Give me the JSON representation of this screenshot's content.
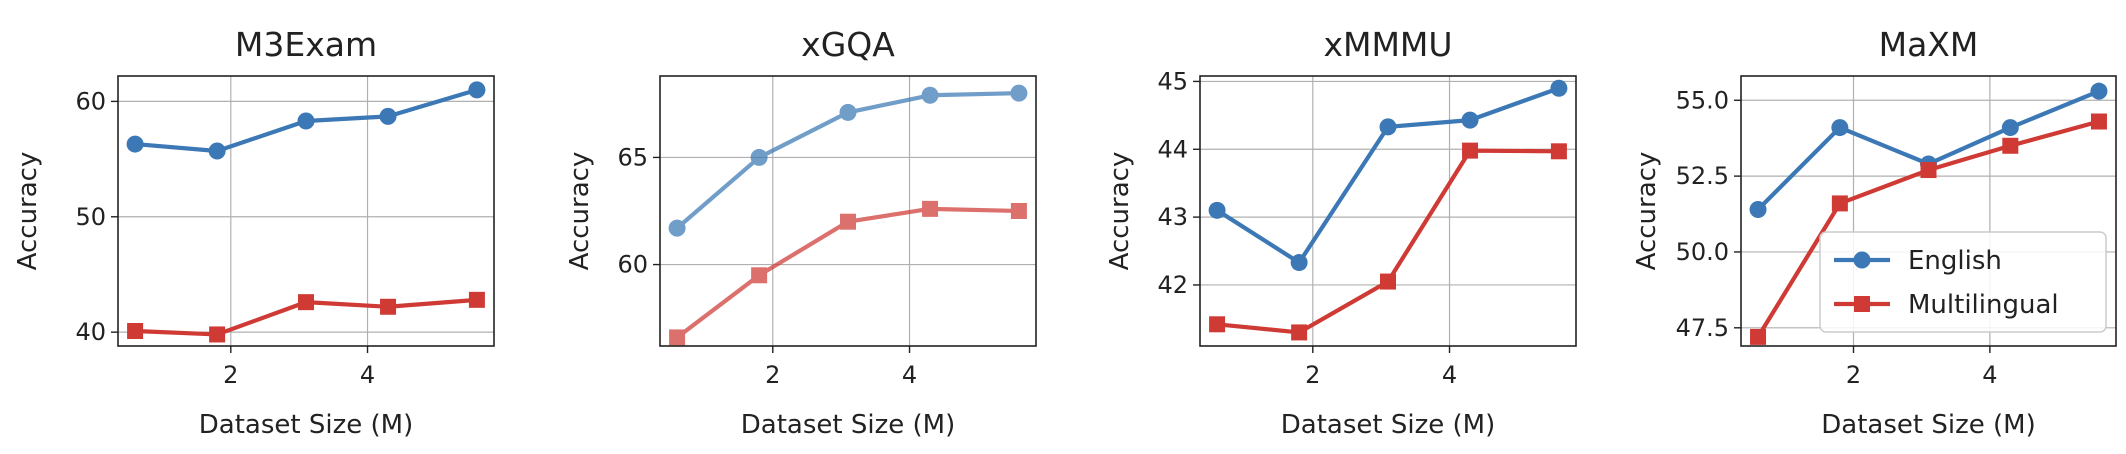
{
  "colors": {
    "english": "#3b78b5",
    "multilingual": "#cf3a35"
  },
  "legend": {
    "english_label": "English",
    "multilingual_label": "Multilingual",
    "placement": "lower-right",
    "in_panel": 3
  },
  "chart_data": [
    {
      "type": "line",
      "title": "M3Exam",
      "xlabel": "Dataset Size (M)",
      "ylabel": "Accuracy",
      "xlim": [
        0.35,
        5.85
      ],
      "ylim": [
        38.8,
        62.2
      ],
      "xticks": [
        2,
        4
      ],
      "xtick_labels": [
        "2",
        "4"
      ],
      "yticks": [
        40,
        50,
        60
      ],
      "ytick_labels": [
        "40",
        "50",
        "60"
      ],
      "grid": true,
      "faded": false,
      "x": [
        0.6,
        1.8,
        3.1,
        4.3,
        5.6
      ],
      "series": [
        {
          "key": "english",
          "values": [
            56.3,
            55.7,
            58.3,
            58.7,
            61.0
          ]
        },
        {
          "key": "multilingual",
          "values": [
            40.1,
            39.8,
            42.6,
            42.2,
            42.8
          ]
        }
      ]
    },
    {
      "type": "line",
      "title": "xGQA",
      "xlabel": "Dataset Size (M)",
      "ylabel": "Accuracy",
      "xlim": [
        0.35,
        5.85
      ],
      "ylim": [
        56.2,
        68.8
      ],
      "xticks": [
        2,
        4
      ],
      "xtick_labels": [
        "2",
        "4"
      ],
      "yticks": [
        60,
        65
      ],
      "ytick_labels": [
        "60",
        "65"
      ],
      "grid": true,
      "faded": true,
      "x": [
        0.6,
        1.8,
        3.1,
        4.3,
        5.6
      ],
      "series": [
        {
          "key": "english",
          "values": [
            61.7,
            65.0,
            67.1,
            67.9,
            68.0
          ]
        },
        {
          "key": "multilingual",
          "values": [
            56.6,
            59.5,
            62.0,
            62.6,
            62.5
          ]
        }
      ]
    },
    {
      "type": "line",
      "title": "xMMMU",
      "xlabel": "Dataset Size (M)",
      "ylabel": "Accuracy",
      "xlim": [
        0.35,
        5.85
      ],
      "ylim": [
        41.1,
        45.08
      ],
      "xticks": [
        2,
        4
      ],
      "xtick_labels": [
        "2",
        "4"
      ],
      "yticks": [
        42,
        43,
        44,
        45
      ],
      "ytick_labels": [
        "42",
        "43",
        "44",
        "45"
      ],
      "grid": true,
      "faded": false,
      "x": [
        0.6,
        1.8,
        3.1,
        4.3,
        5.6
      ],
      "series": [
        {
          "key": "english",
          "values": [
            43.1,
            42.33,
            44.33,
            44.43,
            44.9
          ]
        },
        {
          "key": "multilingual",
          "values": [
            41.42,
            41.3,
            42.05,
            43.98,
            43.97
          ]
        }
      ]
    },
    {
      "type": "line",
      "title": "MaXM",
      "xlabel": "Dataset Size (M)",
      "ylabel": "Accuracy",
      "xlim": [
        0.35,
        5.85
      ],
      "ylim": [
        46.9,
        55.8
      ],
      "xticks": [
        2,
        4
      ],
      "xtick_labels": [
        "2",
        "4"
      ],
      "yticks": [
        47.5,
        50.0,
        52.5,
        55.0
      ],
      "ytick_labels": [
        "47.5",
        "50.0",
        "52.5",
        "55.0"
      ],
      "grid": true,
      "faded": false,
      "x": [
        0.6,
        1.8,
        3.1,
        4.3,
        5.6
      ],
      "series": [
        {
          "key": "english",
          "values": [
            51.4,
            54.1,
            52.9,
            54.1,
            55.3
          ]
        },
        {
          "key": "multilingual",
          "values": [
            47.2,
            51.6,
            52.7,
            53.5,
            54.3
          ]
        }
      ]
    }
  ]
}
